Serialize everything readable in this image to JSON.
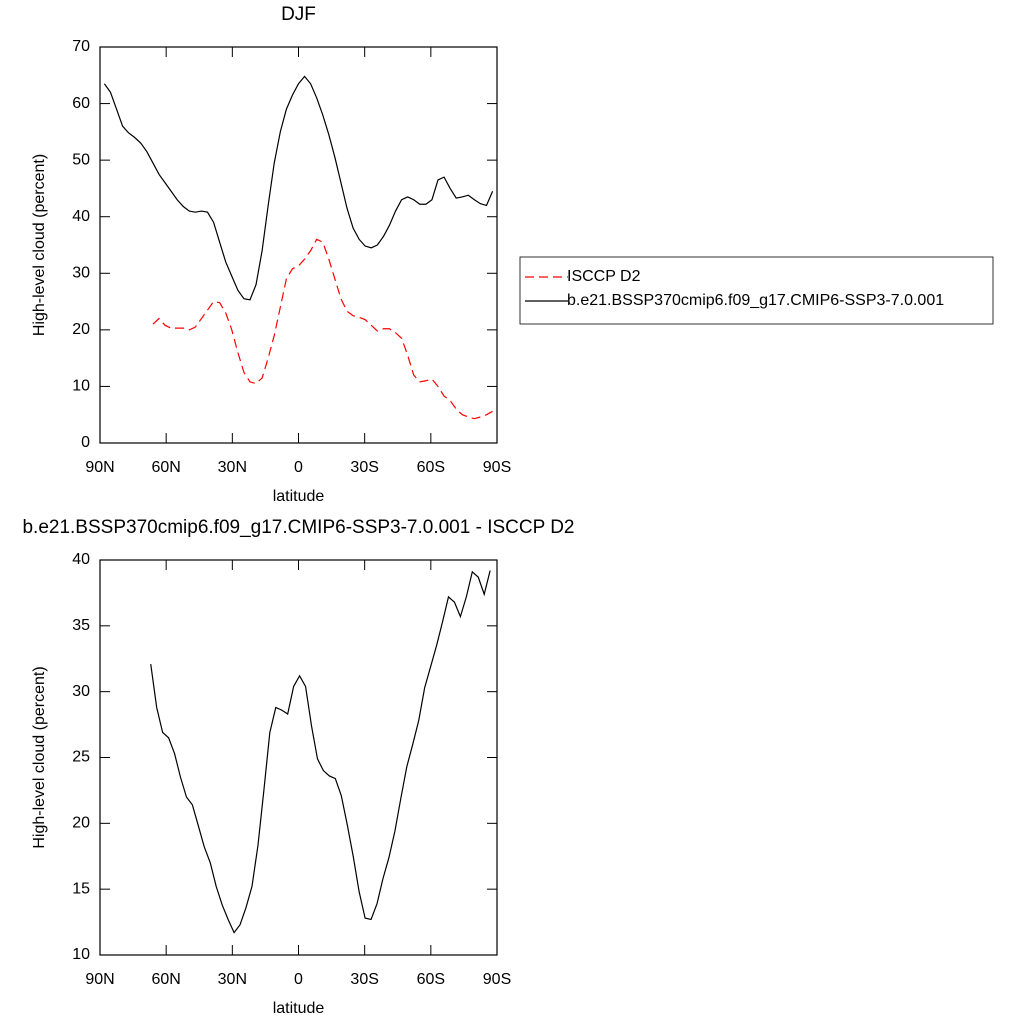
{
  "chart_data": [
    {
      "type": "line",
      "title": "DJF",
      "x_label": "latitude",
      "y_label": "High-level cloud (percent)",
      "x": [
        88,
        85.25,
        82.5,
        79.75,
        77,
        74.25,
        71.5,
        68.75,
        66,
        63.25,
        60.5,
        57.75,
        55,
        52.25,
        49.5,
        46.75,
        44,
        41.25,
        38.5,
        35.75,
        33,
        30.25,
        27.5,
        24.75,
        22,
        19.25,
        16.5,
        13.75,
        11,
        8.25,
        5.5,
        2.75,
        0,
        -2.75,
        -5.5,
        -8.25,
        -11,
        -13.75,
        -16.5,
        -19.25,
        -22,
        -24.75,
        -27.5,
        -30.25,
        -33,
        -35.75,
        -38.5,
        -41.25,
        -44,
        -46.75,
        -49.5,
        -52.25,
        -55,
        -57.75,
        -60.5,
        -63.25,
        -66,
        -68.75,
        -71.5,
        -74.25,
        -77,
        -79.75,
        -82.5,
        -85.25,
        -88
      ],
      "series": [
        {
          "name": "ISCCP D2",
          "color": "#ff0000",
          "style": "dashed",
          "values": [
            null,
            null,
            null,
            null,
            null,
            null,
            null,
            null,
            21,
            22,
            20.8,
            20.3,
            20.3,
            20.3,
            20,
            20.5,
            22,
            23.5,
            25,
            24.8,
            23,
            20,
            16,
            12.5,
            10.8,
            10.5,
            11.5,
            15,
            19,
            24,
            29,
            30.8,
            31.3,
            32.5,
            34,
            36,
            35.5,
            32.5,
            29,
            25.5,
            23.3,
            22.5,
            22.2,
            21.8,
            20.8,
            19.8,
            20.2,
            20.2,
            19.5,
            18.5,
            15.5,
            12,
            10.8,
            11,
            11.3,
            10,
            8.3,
            7.5,
            6,
            5,
            4.6,
            4.3,
            4.6,
            5,
            5.6
          ]
        },
        {
          "name": "b.e21.BSSP370cmip6.f09_g17.CMIP6-SSP3-7.0.001",
          "color": "#000000",
          "style": "solid",
          "values": [
            63.5,
            62,
            59,
            56,
            54.8,
            54,
            53,
            51.5,
            49.5,
            47.5,
            46,
            44.5,
            43,
            41.8,
            41,
            40.8,
            41,
            40.8,
            39,
            35.5,
            32,
            29.5,
            27,
            25.5,
            25.3,
            28,
            34,
            42,
            49.5,
            55,
            59,
            61.5,
            63.5,
            64.8,
            63.5,
            61,
            58,
            54.5,
            50.5,
            46,
            41.5,
            38,
            36,
            34.8,
            34.5,
            35,
            36.5,
            38.5,
            41,
            43,
            43.5,
            43,
            42.2,
            42.2,
            43,
            46.5,
            47,
            45,
            43.3,
            43.5,
            43.8,
            43,
            42.3,
            42,
            44.5
          ]
        }
      ],
      "xlim": [
        90,
        -90
      ],
      "xticks": [
        {
          "value": 90,
          "label": "90N"
        },
        {
          "value": 60,
          "label": "60N"
        },
        {
          "value": 30,
          "label": "30N"
        },
        0,
        {
          "value": -30,
          "label": "30S"
        },
        {
          "value": -60,
          "label": "60S"
        },
        {
          "value": -90,
          "label": "90S"
        }
      ],
      "ylim": [
        0,
        70
      ],
      "yticks": [
        0,
        10,
        20,
        30,
        40,
        50,
        60,
        70
      ],
      "legend": "right"
    },
    {
      "type": "line",
      "title": "b.e21.BSSP370cmip6.f09_g17.CMIP6-SSP3-7.0.001 - ISCCP D2",
      "x_label": "latitude",
      "y_label": "High-level cloud (percent)",
      "x": [
        67,
        64.3,
        61.6,
        58.9,
        56.2,
        53.5,
        50.8,
        48.1,
        45.4,
        42.7,
        40,
        37.3,
        34.6,
        31.9,
        29.2,
        26.5,
        23.8,
        21.1,
        18.4,
        15.7,
        13,
        10.3,
        7.6,
        4.9,
        2.2,
        -0.5,
        -3.2,
        -5.9,
        -8.6,
        -11.3,
        -14,
        -16.7,
        -19.4,
        -22.1,
        -24.8,
        -27.5,
        -30.2,
        -32.9,
        -35.6,
        -38.3,
        -41,
        -43.7,
        -46.4,
        -49.1,
        -51.8,
        -54.5,
        -57.2,
        -59.9,
        -62.6,
        -65.3,
        -68,
        -70.7,
        -73.4,
        -76.1,
        -78.8,
        -81.5,
        -84.2,
        -86.9
      ],
      "series": [
        {
          "color": "#000000",
          "style": "solid",
          "values": [
            32.1,
            28.8,
            26.9,
            26.5,
            25.3,
            23.5,
            22,
            21.4,
            19.8,
            18.2,
            17,
            15.2,
            13.8,
            12.7,
            11.7,
            12.3,
            13.6,
            15.2,
            18.3,
            22.5,
            26.9,
            28.8,
            28.6,
            28.3,
            30.4,
            31.2,
            30.4,
            27.4,
            24.9,
            24,
            23.6,
            23.4,
            22.1,
            19.9,
            17.5,
            14.8,
            12.8,
            12.7,
            13.9,
            15.8,
            17.4,
            19.4,
            21.9,
            24.3,
            26,
            27.8,
            30.3,
            31.9,
            33.5,
            35.3,
            37.2,
            36.8,
            35.7,
            37.2,
            39.1,
            38.7,
            37.4,
            39.2
          ]
        }
      ],
      "xlim": [
        90,
        -90
      ],
      "xticks": [
        {
          "value": 90,
          "label": "90N"
        },
        {
          "value": 60,
          "label": "60N"
        },
        {
          "value": 30,
          "label": "30N"
        },
        0,
        {
          "value": -30,
          "label": "30S"
        },
        {
          "value": -60,
          "label": "60S"
        },
        {
          "value": -90,
          "label": "90S"
        }
      ],
      "ylim": [
        10,
        40
      ],
      "yticks": [
        10,
        15,
        20,
        25,
        30,
        35,
        40
      ]
    }
  ]
}
